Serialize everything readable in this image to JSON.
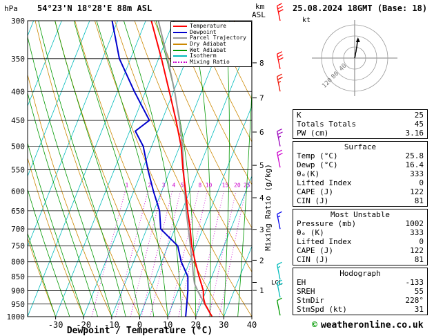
{
  "header": {
    "pressure_unit": "hPa",
    "station": "54°23'N 18°28'E 88m ASL",
    "altitude_unit_line1": "km",
    "altitude_unit_line2": "ASL",
    "datetime": "25.08.2024 18GMT (Base: 18)"
  },
  "colors": {
    "temperature": "#ff0000",
    "dewpoint": "#0000cc",
    "parcel": "#999999",
    "dry_adiabat": "#cc8800",
    "wet_adiabat": "#009900",
    "isotherm": "#00bbbb",
    "mixing_ratio": "#cc00cc",
    "grid": "#000000"
  },
  "legend": [
    {
      "label": "Temperature",
      "color": "#ff0000",
      "dotted": false
    },
    {
      "label": "Dewpoint",
      "color": "#0000cc",
      "dotted": false
    },
    {
      "label": "Parcel Trajectory",
      "color": "#999999",
      "dotted": false
    },
    {
      "label": "Dry Adiabat",
      "color": "#cc8800",
      "dotted": false
    },
    {
      "label": "Wet Adiabat",
      "color": "#009900",
      "dotted": false
    },
    {
      "label": "Isotherm",
      "color": "#00bbbb",
      "dotted": false
    },
    {
      "label": "Mixing Ratio",
      "color": "#cc00cc",
      "dotted": true
    }
  ],
  "chart_data": {
    "type": "skewt_log_p_sounding",
    "xlabel": "Dewpoint / Temperature (°C)",
    "pressure_axis_label": "hPa",
    "mixing_ratio_axis_label": "Mixing Ratio (g/kg)",
    "lcl_label": "LCL",
    "lcl_pressure_hpa": 870,
    "pressure_range_hpa": [
      300,
      1000
    ],
    "temp_axis_range_c": [
      -40,
      40
    ],
    "pressure_log_scale": true,
    "pressure_ticks_hpa": [
      300,
      350,
      400,
      450,
      500,
      550,
      600,
      650,
      700,
      750,
      800,
      850,
      900,
      950,
      1000
    ],
    "temp_ticks_c": [
      -30,
      -20,
      -10,
      0,
      10,
      20,
      30,
      40
    ],
    "km_ticks": [
      1,
      2,
      3,
      4,
      5,
      6,
      7,
      8
    ],
    "mixing_ratio_lines_gkg": [
      1,
      2,
      3,
      4,
      5,
      8,
      10,
      15,
      20,
      25
    ],
    "temperature_profile": [
      [
        1000,
        25.8
      ],
      [
        950,
        21.5
      ],
      [
        925,
        20.0
      ],
      [
        900,
        19.0
      ],
      [
        850,
        15.5
      ],
      [
        800,
        12.0
      ],
      [
        750,
        8.5
      ],
      [
        700,
        5.5
      ],
      [
        650,
        2.0
      ],
      [
        600,
        -1.5
      ],
      [
        550,
        -5.5
      ],
      [
        500,
        -9.5
      ],
      [
        450,
        -15.0
      ],
      [
        400,
        -21.5
      ],
      [
        350,
        -29.0
      ],
      [
        300,
        -38.0
      ]
    ],
    "dewpoint_profile": [
      [
        1000,
        16.4
      ],
      [
        950,
        15.0
      ],
      [
        900,
        13.5
      ],
      [
        850,
        11.5
      ],
      [
        800,
        7.0
      ],
      [
        750,
        3.5
      ],
      [
        700,
        -5.0
      ],
      [
        650,
        -8.0
      ],
      [
        600,
        -13.0
      ],
      [
        550,
        -18.0
      ],
      [
        500,
        -23.0
      ],
      [
        470,
        -28.0
      ],
      [
        450,
        -24.5
      ],
      [
        400,
        -34.0
      ],
      [
        350,
        -44.0
      ],
      [
        300,
        -52.0
      ]
    ],
    "parcel_profile": [
      [
        1000,
        25.8
      ],
      [
        950,
        21.4
      ],
      [
        900,
        17.0
      ],
      [
        875,
        14.9
      ],
      [
        850,
        13.5
      ],
      [
        800,
        10.9
      ],
      [
        750,
        8.0
      ],
      [
        700,
        4.9
      ],
      [
        650,
        1.5
      ],
      [
        600,
        -1.8
      ],
      [
        550,
        -5.3
      ],
      [
        500,
        -9.0
      ],
      [
        450,
        -13.8
      ],
      [
        400,
        -19.6
      ],
      [
        350,
        -26.8
      ],
      [
        300,
        -35.5
      ]
    ],
    "wind_barbs": [
      {
        "pressure": 300,
        "speed_kt": 30,
        "color": "#ff0000"
      },
      {
        "pressure": 365,
        "speed_kt": 30,
        "color": "#ff0000"
      },
      {
        "pressure": 400,
        "speed_kt": 25,
        "color": "#ee1100"
      },
      {
        "pressure": 500,
        "speed_kt": 25,
        "color": "#9900bb"
      },
      {
        "pressure": 545,
        "speed_kt": 20,
        "color": "#cc00cc"
      },
      {
        "pressure": 700,
        "speed_kt": 15,
        "color": "#0000ee"
      },
      {
        "pressure": 860,
        "speed_kt": 15,
        "color": "#00bbbb"
      },
      {
        "pressure": 925,
        "speed_kt": 20,
        "color": "#00bbbb"
      },
      {
        "pressure": 995,
        "speed_kt": 10,
        "color": "#009900"
      }
    ]
  },
  "hodograph": {
    "unit_label": "kt",
    "ring_values_kt": [
      40,
      80,
      120
    ],
    "trace_uv_kt": [
      [
        0,
        0
      ],
      [
        2,
        8
      ],
      [
        3,
        16
      ],
      [
        5,
        24
      ],
      [
        6,
        32
      ],
      [
        8,
        42
      ],
      [
        9,
        52
      ],
      [
        11,
        62
      ],
      [
        12,
        70
      ]
    ]
  },
  "panel": {
    "sections": [
      {
        "header": null,
        "rows": [
          [
            "K",
            "25"
          ],
          [
            "Totals Totals",
            "45"
          ],
          [
            "PW (cm)",
            "3.16"
          ]
        ]
      },
      {
        "header": "Surface",
        "rows": [
          [
            "Temp (°C)",
            "25.8"
          ],
          [
            "Dewp (°C)",
            "16.4"
          ],
          [
            "θₑ(K)",
            "333"
          ],
          [
            "Lifted Index",
            "0"
          ],
          [
            "CAPE (J)",
            "122"
          ],
          [
            "CIN (J)",
            "81"
          ]
        ]
      },
      {
        "header": "Most Unstable",
        "rows": [
          [
            "Pressure (mb)",
            "1002"
          ],
          [
            "θₑ (K)",
            "333"
          ],
          [
            "Lifted Index",
            "0"
          ],
          [
            "CAPE (J)",
            "122"
          ],
          [
            "CIN (J)",
            "81"
          ]
        ]
      },
      {
        "header": "Hodograph",
        "rows": [
          [
            "EH",
            "-133"
          ],
          [
            "SREH",
            "55"
          ],
          [
            "StmDir",
            "228°"
          ],
          [
            "StmSpd (kt)",
            "31"
          ]
        ]
      }
    ]
  },
  "footer": {
    "copyright": "©",
    "site": "weatheronline.co.uk"
  }
}
